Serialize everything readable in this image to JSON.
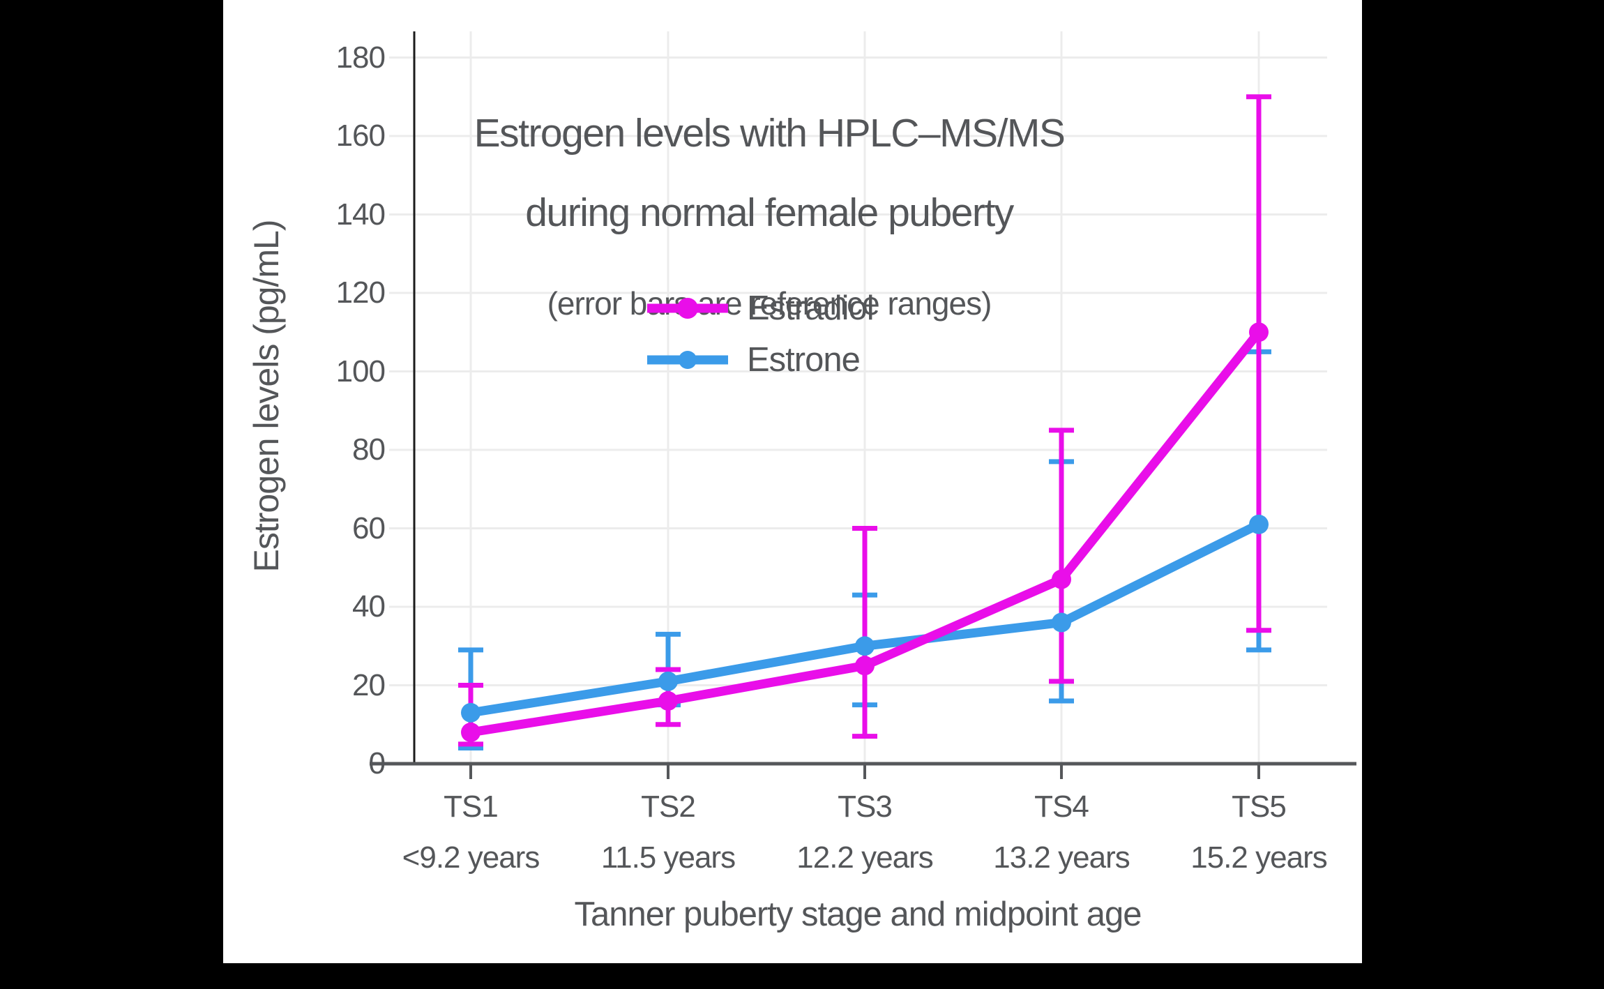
{
  "chart": {
    "title_line1": "Estrogen levels with HPLC–MS/MS",
    "title_line2": "during normal female puberty",
    "subtitle": "(error bars are reference ranges)",
    "y_axis_title": "Estrogen levels (pg/mL)",
    "x_axis_title": "Tanner puberty stage and midpoint age"
  },
  "legend": {
    "items": [
      {
        "label": "Estradiol",
        "color": "#E90EE9"
      },
      {
        "label": "Estrone",
        "color": "#3B9BE9"
      }
    ]
  },
  "chart_data": {
    "type": "line",
    "title": "Estrogen levels with HPLC–MS/MS during normal female puberty",
    "subtitle": "(error bars are reference ranges)",
    "xlabel": "Tanner puberty stage and midpoint age",
    "ylabel": "Estrogen levels (pg/mL)",
    "categories": [
      "TS1",
      "TS2",
      "TS3",
      "TS4",
      "TS5"
    ],
    "category_sublabels": [
      "<9.2 years",
      "11.5 years",
      "12.2 years",
      "13.2 years",
      "15.2 years"
    ],
    "y_ticks": [
      0,
      20,
      40,
      60,
      80,
      100,
      120,
      140,
      160,
      180
    ],
    "ylim": [
      0,
      187
    ],
    "grid": true,
    "legend_position": "upper-center-inside",
    "error_bars_meaning": "reference ranges",
    "series": [
      {
        "name": "Estradiol",
        "color": "#E90EE9",
        "values": [
          8,
          16,
          25,
          47,
          110
        ],
        "range_low": [
          5,
          10,
          7,
          21,
          34
        ],
        "range_high": [
          20,
          24,
          60,
          85,
          170
        ]
      },
      {
        "name": "Estrone",
        "color": "#3B9BE9",
        "values": [
          13,
          21,
          30,
          36,
          61
        ],
        "range_low": [
          4,
          15,
          15,
          16,
          29
        ],
        "range_high": [
          29,
          33,
          43,
          77,
          105
        ]
      }
    ]
  },
  "colors": {
    "background": "#000000",
    "chart_background": "#ffffff",
    "grid": "#ececec",
    "axis": "#55575a",
    "y_axis_line": "#1c1c1c",
    "text": "#545659"
  }
}
